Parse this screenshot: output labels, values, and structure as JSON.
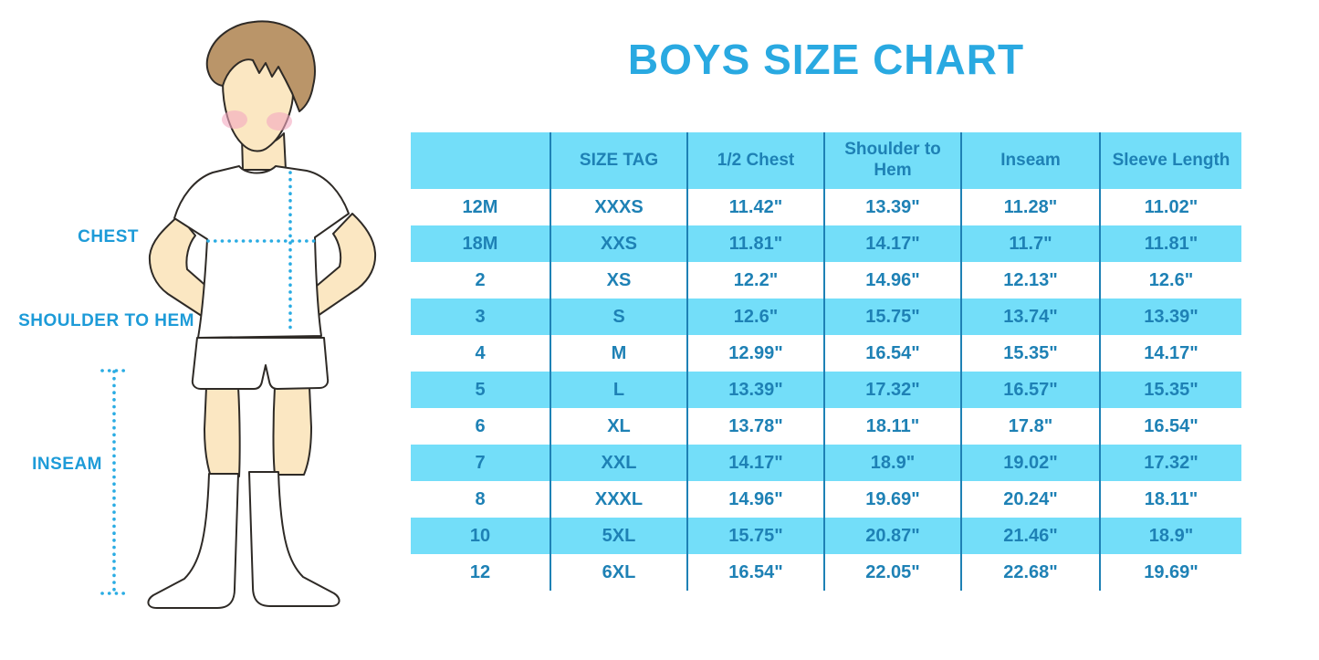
{
  "title": {
    "text": "BOYS SIZE CHART",
    "color": "#29A9E1"
  },
  "figure": {
    "description": "boy-in-tshirt-shorts-socks-illustration",
    "labels": {
      "chest": "CHEST",
      "shoulder_to_hem": "SHOULDER TO HEM",
      "inseam": "INSEAM"
    },
    "label_color": "#1D9BD8",
    "dotted_line_color": "#2AACE3",
    "skin_color": "#FBE7C2",
    "hair_color": "#BA9569",
    "blush_color": "#F3A9C0",
    "outline_color": "#2E2A26"
  },
  "chart_data": {
    "type": "table",
    "title": "BOYS SIZE CHART",
    "columns": [
      "",
      "SIZE TAG",
      "1/2 Chest",
      "Shoulder to Hem",
      "Inseam",
      "Sleeve Length"
    ],
    "rows": [
      [
        "12M",
        "XXXS",
        "11.42\"",
        "13.39\"",
        "11.28\"",
        "11.02\""
      ],
      [
        "18M",
        "XXS",
        "11.81\"",
        "14.17\"",
        "11.7\"",
        "11.81\""
      ],
      [
        "2",
        "XS",
        "12.2\"",
        "14.96\"",
        "12.13\"",
        "12.6\""
      ],
      [
        "3",
        "S",
        "12.6\"",
        "15.75\"",
        "13.74\"",
        "13.39\""
      ],
      [
        "4",
        "M",
        "12.99\"",
        "16.54\"",
        "15.35\"",
        "14.17\""
      ],
      [
        "5",
        "L",
        "13.39\"",
        "17.32\"",
        "16.57\"",
        "15.35\""
      ],
      [
        "6",
        "XL",
        "13.78\"",
        "18.11\"",
        "17.8\"",
        "16.54\""
      ],
      [
        "7",
        "XXL",
        "14.17\"",
        "18.9\"",
        "19.02\"",
        "17.32\""
      ],
      [
        "8",
        "XXXL",
        "14.96\"",
        "19.69\"",
        "20.24\"",
        "18.11\""
      ],
      [
        "10",
        "5XL",
        "15.75\"",
        "20.87\"",
        "21.46\"",
        "18.9\""
      ],
      [
        "12",
        "6XL",
        "16.54\"",
        "22.05\"",
        "22.68\"",
        "19.69\""
      ]
    ],
    "header_bg": "#73DEF9",
    "stripe_bg": "#73DEF9",
    "text_color": "#1E81B5",
    "divider_color": "#1E81B5",
    "row_striping": "white-blue-alternating, first data row white"
  }
}
